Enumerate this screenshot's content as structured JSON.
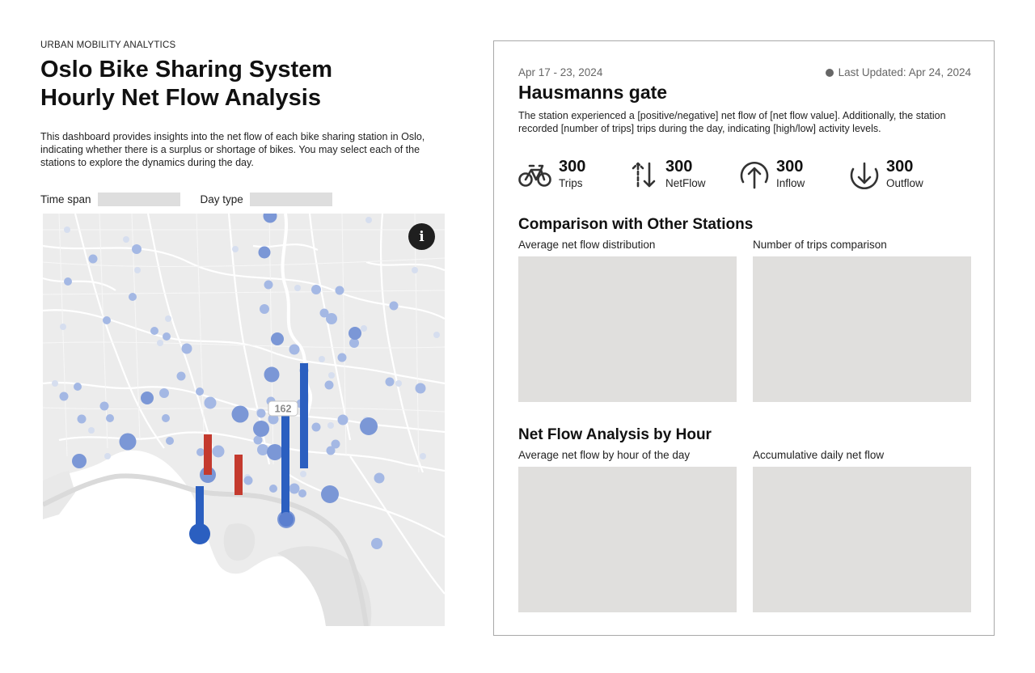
{
  "header": {
    "eyebrow": "URBAN MOBILITY ANALYTICS",
    "title": "Oslo Bike Sharing System Hourly Net Flow Analysis",
    "description": "This dashboard provides insights into the net flow of each bike sharing station in Oslo, indicating whether there is a surplus or shortage of bikes. You may select each of the stations to explore the dynamics during the day."
  },
  "filters": {
    "time_span_label": "Time span",
    "time_span_value": "",
    "day_type_label": "Day type",
    "day_type_value": ""
  },
  "map": {
    "selected_station_count": "162",
    "info_icon": "info-icon",
    "info_glyph": "i",
    "colors": {
      "station": "#7b97d6",
      "station_selected": "#2b5fc0",
      "positive_bar": "#2b5fc0",
      "negative_bar": "#c43a2e"
    }
  },
  "station": {
    "date_range": "Apr 17 - 23, 2024",
    "last_updated": "Last Updated: Apr 24, 2024",
    "name": "Hausmanns gate",
    "description": "The station experienced a [positive/negative] net flow of [net flow value]. Additionally, the station recorded [number of trips] trips during the day, indicating [high/low] activity levels."
  },
  "stats": [
    {
      "value": "300",
      "label": "Trips",
      "icon": "bicycle-icon"
    },
    {
      "value": "300",
      "label": "NetFlow",
      "icon": "up-down-arrows-icon"
    },
    {
      "value": "300",
      "label": "Inflow",
      "icon": "arrow-up-circle-icon"
    },
    {
      "value": "300",
      "label": "Outflow",
      "icon": "arrow-down-circle-icon"
    }
  ],
  "comparison": {
    "title": "Comparison with Other Stations",
    "chart1_label": "Average net flow distribution",
    "chart2_label": "Number of trips comparison"
  },
  "hourly": {
    "title": "Net Flow Analysis by Hour",
    "chart1_label": "Average net flow by hour of the day",
    "chart2_label": "Accumulative daily net flow"
  }
}
